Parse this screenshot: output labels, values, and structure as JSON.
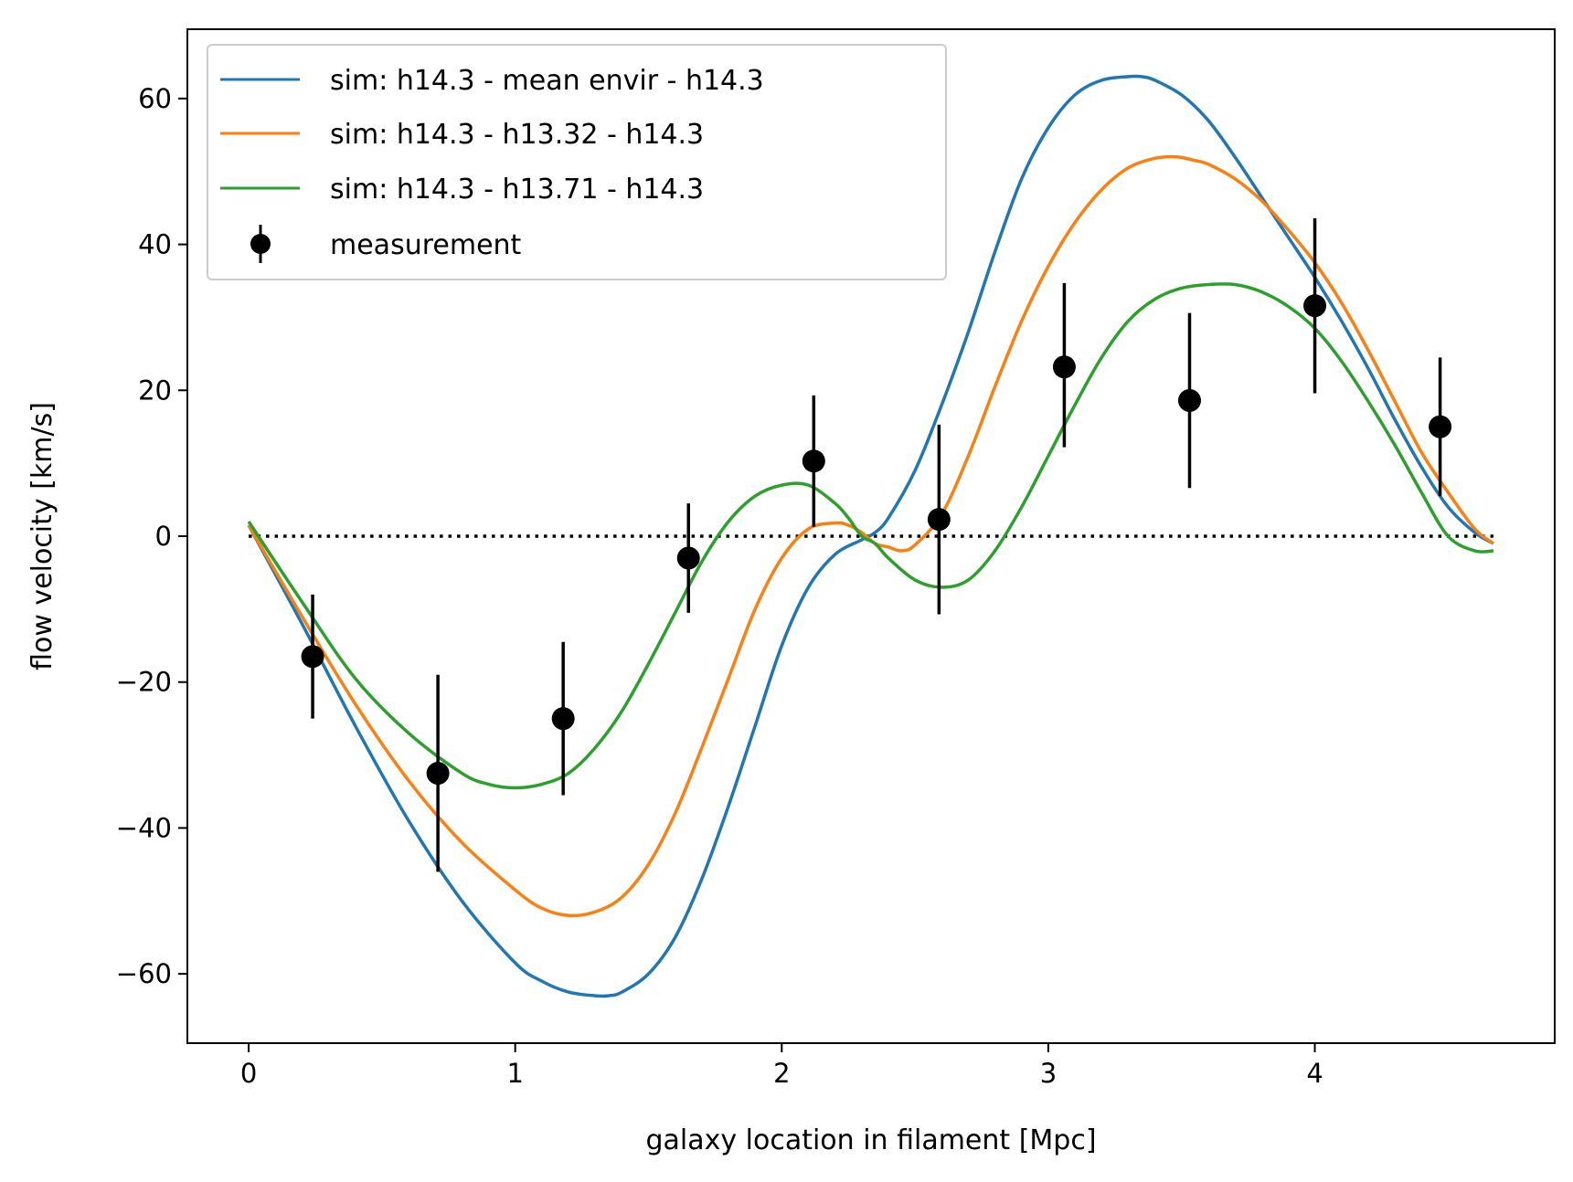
{
  "chart_data": {
    "type": "line",
    "title": "",
    "xlabel": "galaxy location in filament [Mpc]",
    "ylabel": "flow velocity [km/s]",
    "xlim": [
      -0.23,
      4.9
    ],
    "ylim": [
      -69.5,
      69.5
    ],
    "xticks": [
      0,
      1,
      2,
      3,
      4
    ],
    "yticks": [
      -60,
      -40,
      -20,
      0,
      20,
      40,
      60
    ],
    "xtick_labels": [
      "0",
      "1",
      "2",
      "3",
      "4"
    ],
    "ytick_labels": [
      "−60",
      "−40",
      "−20",
      "0",
      "20",
      "40",
      "60"
    ],
    "legend_position": "top-left",
    "zero_line": {
      "x": [
        0,
        4.67
      ],
      "y": 0,
      "style": "dotted",
      "color": "#000000"
    },
    "series": [
      {
        "name": "sim: h14.3 - mean envir - h14.3",
        "color": "#1f77b4",
        "x": [
          0.0,
          0.2,
          0.4,
          0.6,
          0.8,
          1.0,
          1.1,
          1.2,
          1.3,
          1.35,
          1.4,
          1.5,
          1.6,
          1.7,
          1.8,
          1.9,
          2.0,
          2.1,
          2.2,
          2.3,
          2.35,
          2.4,
          2.5,
          2.6,
          2.7,
          2.8,
          2.9,
          3.0,
          3.1,
          3.2,
          3.3,
          3.35,
          3.4,
          3.5,
          3.6,
          3.7,
          3.8,
          3.9,
          4.0,
          4.1,
          4.2,
          4.3,
          4.4,
          4.5,
          4.6,
          4.67
        ],
        "y": [
          1.5,
          -12,
          -26,
          -39,
          -50,
          -58.5,
          -61,
          -62.5,
          -63,
          -63,
          -62.5,
          -60,
          -55,
          -47,
          -37,
          -26,
          -15,
          -7,
          -2.5,
          -0.5,
          0.5,
          2.5,
          9,
          18,
          28,
          39,
          49,
          56,
          60.5,
          62.5,
          63,
          63,
          62.5,
          60.5,
          57,
          52,
          46.5,
          41,
          35.5,
          29.5,
          23,
          16,
          9.5,
          4,
          0.5,
          -1
        ]
      },
      {
        "name": "sim: h14.3 - h13.32 - h14.3",
        "color": "#ff7f0e",
        "x": [
          0.0,
          0.2,
          0.4,
          0.6,
          0.8,
          1.0,
          1.1,
          1.2,
          1.3,
          1.4,
          1.5,
          1.6,
          1.7,
          1.8,
          1.9,
          2.0,
          2.1,
          2.2,
          2.25,
          2.3,
          2.35,
          2.4,
          2.45,
          2.5,
          2.6,
          2.7,
          2.8,
          2.9,
          3.0,
          3.1,
          3.2,
          3.3,
          3.4,
          3.48,
          3.55,
          3.6,
          3.7,
          3.8,
          3.9,
          4.0,
          4.1,
          4.2,
          4.3,
          4.4,
          4.5,
          4.6,
          4.67
        ],
        "y": [
          1.5,
          -11,
          -23,
          -33.5,
          -42,
          -48.5,
          -51,
          -52,
          -51.5,
          -49.5,
          -45,
          -38,
          -29,
          -19.5,
          -10,
          -3,
          1,
          1.8,
          1.5,
          0.5,
          -1,
          -1.5,
          -2,
          -1.2,
          3,
          11,
          20.5,
          29.5,
          37,
          43,
          47.5,
          50.5,
          51.8,
          52,
          51.5,
          51,
          49,
          46,
          42,
          37.5,
          32,
          25.5,
          18.5,
          11.5,
          6,
          1,
          -1
        ]
      },
      {
        "name": "sim: h14.3 - h13.71 - h14.3",
        "color": "#2ca02c",
        "x": [
          0.0,
          0.2,
          0.4,
          0.6,
          0.8,
          0.9,
          1.0,
          1.1,
          1.2,
          1.3,
          1.4,
          1.5,
          1.6,
          1.7,
          1.8,
          1.9,
          2.0,
          2.1,
          2.2,
          2.25,
          2.3,
          2.35,
          2.4,
          2.5,
          2.6,
          2.7,
          2.8,
          2.9,
          3.0,
          3.1,
          3.2,
          3.3,
          3.4,
          3.5,
          3.6,
          3.7,
          3.8,
          3.9,
          4.0,
          4.1,
          4.2,
          4.3,
          4.4,
          4.5,
          4.6,
          4.67
        ],
        "y": [
          2,
          -9,
          -19.5,
          -27,
          -32.5,
          -34,
          -34.5,
          -34,
          -32.5,
          -29,
          -24,
          -17.5,
          -10.5,
          -3.5,
          2,
          5.5,
          7,
          7,
          4.5,
          2.5,
          0,
          -1,
          -3,
          -6,
          -7,
          -6,
          -2,
          4,
          11,
          18,
          24.5,
          29.5,
          32.5,
          34,
          34.5,
          34.5,
          33.5,
          31.5,
          28.5,
          24,
          18.5,
          12.5,
          6,
          0,
          -2,
          -2
        ]
      }
    ],
    "measurement": {
      "name": "measurement",
      "color": "#000000",
      "x": [
        0.24,
        0.71,
        1.18,
        1.65,
        2.12,
        2.59,
        3.06,
        3.53,
        4.0,
        4.47
      ],
      "y": [
        -16.5,
        -32.5,
        -25,
        -3,
        10.3,
        2.3,
        23.2,
        18.6,
        31.6,
        15
      ],
      "yerr_low": [
        8.5,
        13.5,
        10.5,
        7.5,
        9,
        13,
        11,
        12,
        12,
        9.5
      ],
      "yerr_high": [
        8.5,
        13.5,
        10.5,
        7.5,
        9,
        13,
        11.5,
        12,
        12,
        9.5
      ]
    }
  }
}
